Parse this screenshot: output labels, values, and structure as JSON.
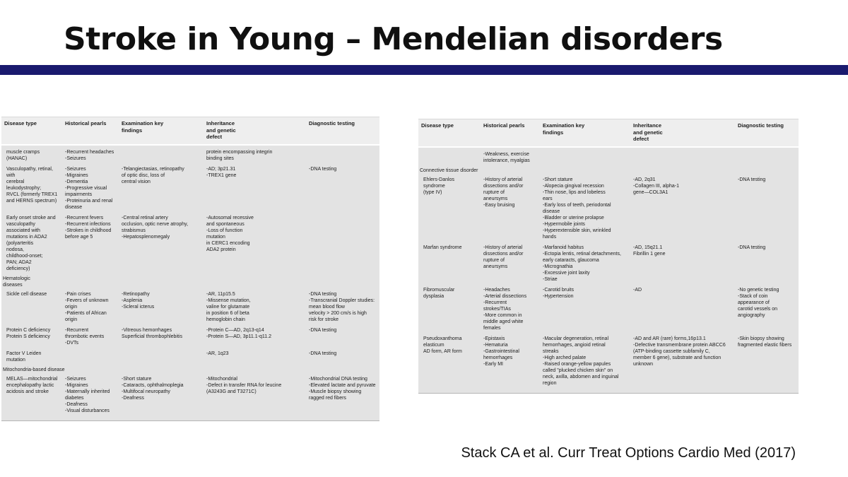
{
  "slide": {
    "title": "Stroke in Young – Mendelian disorders",
    "citation": "Stack CA et al. Curr Treat Options Cardio Med (2017)"
  },
  "colors": {
    "accent_bar": "#1a1a6e",
    "table_header_bg": "#eeeeee",
    "table_body_bg": "#e3e3e3"
  },
  "tables": [
    {
      "name": "mendelian-disorders-table-left",
      "headers": [
        "Disease type",
        "Historical pearls",
        "Examination key\nfindings",
        "Inheritance\nand genetic\ndefect",
        "Diagnostic testing"
      ],
      "rows": [
        {
          "type": "data",
          "cells": [
            "muscle cramps\n(HANAC)",
            "-Recurrent headaches\n-Seizures",
            "",
            "protein encompassing integrin\nbinding sites",
            ""
          ]
        },
        {
          "type": "data",
          "cells": [
            "Vasculopathy, retinal,\nwith\ncerebral\nleukodystrophy;\nRVCL (formerly TREX1\nand HERNS spectrum)",
            "-Seizures\n-Migraines\n-Dementia\n-Progressive visual\n impairments\n-Proteinuria and renal\n disease",
            "-Telangiectasias, retinopathy\n of optic disc, loss of\n central vision",
            "-AD; 3p21.31\n-TREX1 gene",
            "-DNA testing"
          ]
        },
        {
          "type": "data",
          "cells": [
            "Early onset stroke and\nvasculopathy\nassociated with\nmutations in ADA2\n(polyarteritis\nnodosa,\nchildhood-onset;\nPAN; ADA2\ndeficiency)",
            "-Recurrent fevers\n-Recurrent infections\n-Strokes in childhood\n before age 5",
            "-Central retinal artery\n occlusion, optic nerve atrophy,\n strabismus\n-Hepatosplenomegaly",
            "-Autosomal recessive\n and spontaneous\n-Loss of function\n mutation\n in CERC1 encoding\n ADA2 protein",
            ""
          ]
        },
        {
          "type": "section",
          "label": "Hematologic\n diseases"
        },
        {
          "type": "data",
          "cells": [
            "Sickle cell disease",
            "-Pain crises\n-Fevers of unknown\n origin\n-Patients of African\n origin",
            "-Retinopathy\n-Asplenia\n-Scleral icterus",
            "-AR, 11p15.5\n-Missense mutation,\n valine for glutamate\n in position 6 of beta\n hemoglobin chain",
            "-DNA testing\n-Transcranial Doppler studies:\n mean blood flow\n velocity > 200 cm/s is high\n risk for stroke"
          ]
        },
        {
          "type": "data",
          "cells": [
            "Protein C deficiency\nProtein S deficiency",
            "-Recurrent\n thrombotic events\n-DVTs",
            "-Vitreous hemorrhages\nSuperficial thrombophlebitis",
            "-Protein C—AD, 2q13-q14\n-Protein S—AD, 3p11.1-q11.2",
            "-DNA testing"
          ]
        },
        {
          "type": "data",
          "cells": [
            "Factor V Leiden\n mutation",
            "",
            "",
            "-AR, 1q23",
            "-DNA testing"
          ]
        },
        {
          "type": "section",
          "label": "Mitochondria-based disease"
        },
        {
          "type": "data",
          "cells": [
            "MELAS—mitochondrial\nencephalopathy lactic\nacidosis and stroke",
            "-Seizures\n-Migraines\n-Maternally inherited\n diabetes\n-Deafness\n-Visual disturbances",
            "-Short stature\n-Cataracts, ophthalmoplegia\n-Multifocal neuropathy\n-Deafness",
            "-Mitochondrial\n-Defect in transfer RNA for leucine\n(A3243G and T3271C)",
            "-Mitochondrial DNA testing\n-Elevated lactate and pyruvate\n-Muscle biopsy showing\n ragged red fibers"
          ]
        }
      ]
    },
    {
      "name": "mendelian-disorders-table-right",
      "headers": [
        "Disease type",
        "Historical pearls",
        "Examination key\nfindings",
        "Inheritance\nand genetic\ndefect",
        "Diagnostic testing"
      ],
      "rows": [
        {
          "type": "data",
          "cells": [
            "",
            "-Weakness, exercise\n intolerance, myalgias",
            "",
            "",
            ""
          ]
        },
        {
          "type": "section",
          "label": "Connective tissue disorder"
        },
        {
          "type": "data",
          "cells": [
            "Ehlers-Danlos\nsyndrome\n(type IV)",
            "-History of arterial\n dissections and/or\n rupture of\n aneursyms\n-Easy bruising",
            "-Short stature\n-Alopecia gingival recession\n-Thin nose, lips and lobeless\n ears\n-Early loss of teeth, periodontal\n disease\n-Bladder or uterine prolapse\n-Hypermobile joints\n-Hyperextensible skin, wrinkled\n hands",
            "-AD, 2q31\n-Collagen III, alpha-1\n gene—COL3A1",
            "-DNA testing"
          ]
        },
        {
          "type": "data",
          "cells": [
            "Marfan syndrome",
            "-History of arterial\n dissections and/or\n rupture of\n aneursyms",
            "-Marfanoid habitus\n-Ectopia lentis, retinal detachments,\n early cataracts, glaucoma\n-Micrognathia\n-Excessive joint laxity\n-Striae",
            "-AD, 15q21.1\nFibrillin 1 gene",
            "-DNA testing"
          ]
        },
        {
          "type": "data",
          "cells": [
            "Fibromuscular\ndysplasia",
            "-Headaches\n-Arterial dissections\n-Recurrent\n strokes/TIAs\n-More common in\n middle aged white\n females",
            "-Carotid bruits\n-Hypertension",
            "-AD",
            "-No genetic testing\n-Stack of coin appearance of\n carotid vessels on\n angiography"
          ]
        },
        {
          "type": "data",
          "cells": [
            "Pseudoxanthoma\nelasticum\nAD form, AR form",
            "-Epistaxis\n-Hematuria\n-Gastrointestinal\n hemorrhages\n-Early MI",
            "-Macular degeneration, retinal\n hemorrhages, angioid retinal\n streaks\n-High arched palate\n-Raised orange-yellow papules\n called \"plucked chicken skin\" on\n neck, axilla, abdomen and inguinal\n region",
            "-AD and AR (rare) forms,16p13.1\n-Defective transmembrane protein ABCC6\n (ATP-binding cassette subfamily C,\n member 6 gene), substrate and function\n unknown",
            "-Skin biopsy showing\n fragmented elastic fibers"
          ]
        }
      ]
    }
  ]
}
